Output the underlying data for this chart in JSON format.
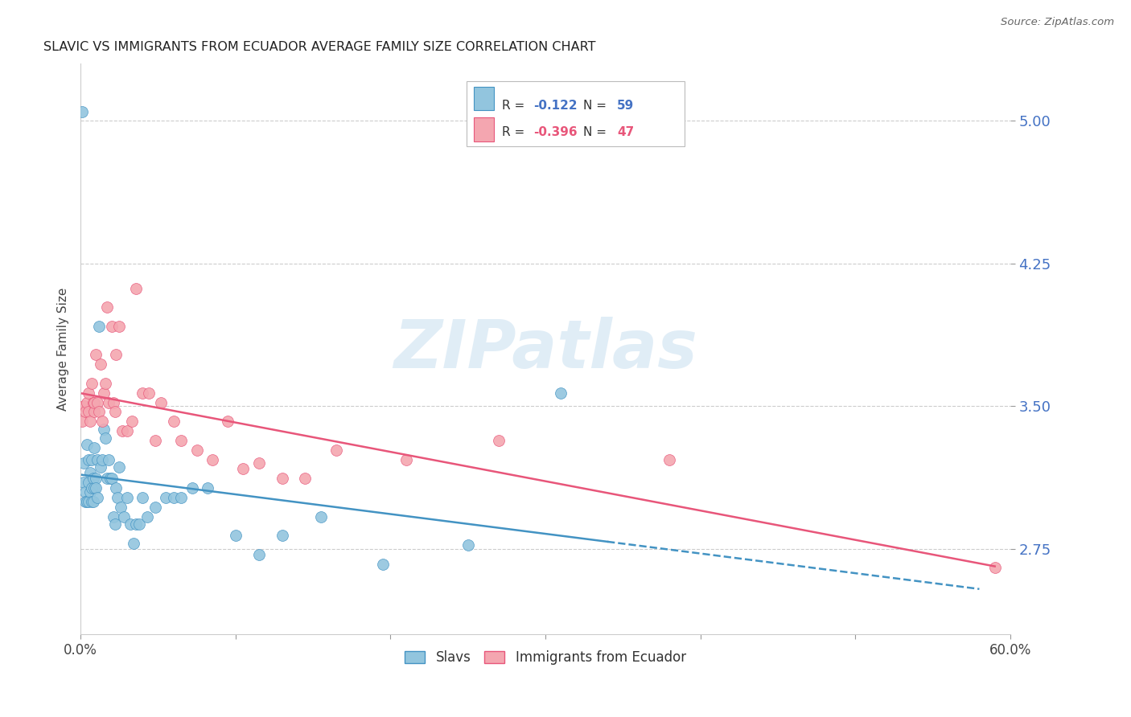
{
  "title": "SLAVIC VS IMMIGRANTS FROM ECUADOR AVERAGE FAMILY SIZE CORRELATION CHART",
  "source": "Source: ZipAtlas.com",
  "ylabel": "Average Family Size",
  "yticks": [
    2.75,
    3.5,
    4.25,
    5.0
  ],
  "xlim": [
    0.0,
    0.6
  ],
  "ylim": [
    2.3,
    5.3
  ],
  "watermark": "ZIPatlas",
  "slavs_color": "#92c5de",
  "ecuador_color": "#f4a6b0",
  "trend_slavs_color": "#4393c3",
  "trend_ecuador_color": "#e8567a",
  "slavs_x": [
    0.001,
    0.002,
    0.002,
    0.003,
    0.003,
    0.004,
    0.004,
    0.005,
    0.005,
    0.005,
    0.006,
    0.006,
    0.007,
    0.007,
    0.007,
    0.008,
    0.008,
    0.009,
    0.009,
    0.01,
    0.01,
    0.011,
    0.011,
    0.012,
    0.013,
    0.014,
    0.015,
    0.016,
    0.017,
    0.018,
    0.019,
    0.02,
    0.021,
    0.022,
    0.023,
    0.024,
    0.025,
    0.026,
    0.028,
    0.03,
    0.032,
    0.034,
    0.036,
    0.038,
    0.04,
    0.043,
    0.048,
    0.055,
    0.06,
    0.065,
    0.072,
    0.082,
    0.1,
    0.115,
    0.13,
    0.155,
    0.195,
    0.25,
    0.31
  ],
  "slavs_y": [
    5.05,
    3.2,
    3.1,
    3.05,
    3.0,
    3.3,
    3.0,
    3.1,
    3.22,
    3.0,
    3.15,
    3.05,
    3.22,
    3.07,
    3.0,
    3.12,
    3.0,
    3.28,
    3.07,
    3.12,
    3.07,
    3.22,
    3.02,
    3.92,
    3.18,
    3.22,
    3.38,
    3.33,
    3.12,
    3.22,
    3.12,
    3.12,
    2.92,
    2.88,
    3.07,
    3.02,
    3.18,
    2.97,
    2.92,
    3.02,
    2.88,
    2.78,
    2.88,
    2.88,
    3.02,
    2.92,
    2.97,
    3.02,
    3.02,
    3.02,
    3.07,
    3.07,
    2.82,
    2.72,
    2.82,
    2.92,
    2.67,
    2.77,
    3.57
  ],
  "ecuador_x": [
    0.001,
    0.002,
    0.003,
    0.004,
    0.005,
    0.005,
    0.006,
    0.007,
    0.008,
    0.009,
    0.009,
    0.01,
    0.011,
    0.012,
    0.013,
    0.014,
    0.015,
    0.016,
    0.017,
    0.018,
    0.02,
    0.021,
    0.022,
    0.023,
    0.025,
    0.027,
    0.03,
    0.033,
    0.036,
    0.04,
    0.044,
    0.048,
    0.052,
    0.06,
    0.065,
    0.075,
    0.085,
    0.095,
    0.105,
    0.115,
    0.13,
    0.145,
    0.165,
    0.21,
    0.27,
    0.38,
    0.59
  ],
  "ecuador_y": [
    3.42,
    3.5,
    3.47,
    3.52,
    3.47,
    3.57,
    3.42,
    3.62,
    3.52,
    3.47,
    3.52,
    3.77,
    3.52,
    3.47,
    3.72,
    3.42,
    3.57,
    3.62,
    4.02,
    3.52,
    3.92,
    3.52,
    3.47,
    3.77,
    3.92,
    3.37,
    3.37,
    3.42,
    4.12,
    3.57,
    3.57,
    3.32,
    3.52,
    3.42,
    3.32,
    3.27,
    3.22,
    3.42,
    3.17,
    3.2,
    3.12,
    3.12,
    3.27,
    3.22,
    3.32,
    3.22,
    2.65
  ]
}
